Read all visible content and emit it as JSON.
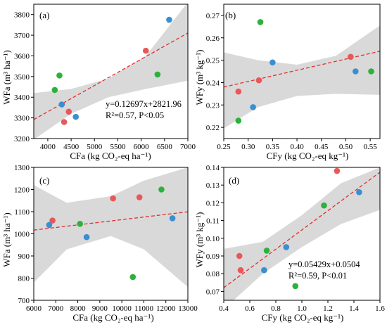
{
  "figure": {
    "panels": [
      {
        "id": "a",
        "panel_label": "(a)",
        "xlabel": "CFa (kg CO₂-eq ha⁻¹)",
        "ylabel": "WFa (m³ ha⁻¹)",
        "equation": "y=0.12697x+2821.96",
        "stats": "R²=0.57, P<0.05"
      },
      {
        "id": "b",
        "panel_label": "(b)",
        "xlabel": "CFy (kg CO₂-eq kg⁻¹)",
        "ylabel": "WFy (m³ kg⁻¹)",
        "equation": "",
        "stats": ""
      },
      {
        "id": "c",
        "panel_label": "(c)",
        "xlabel": "CFa (kg CO₂-eq ha⁻¹)",
        "ylabel": "WFa (m³ ha⁻¹)",
        "equation": "",
        "stats": ""
      },
      {
        "id": "d",
        "panel_label": "(d)",
        "xlabel": "CFy (kg CO₂-eq kg⁻¹)",
        "ylabel": "WFy (m³ kg⁻¹)",
        "equation": "y=0.05429x+0.0504",
        "stats": "R²=0.59, P<0.01"
      }
    ]
  },
  "colors": {
    "red": "#e8575a",
    "blue": "#3a8fd0",
    "green": "#2bb23b",
    "fit": "#e03030",
    "band": "#d9d9d9"
  },
  "chart_data": [
    {
      "type": "scatter",
      "panel": "a",
      "xlim": [
        3700,
        7000
      ],
      "ylim": [
        3200,
        3850
      ],
      "xticks": [
        4000,
        4500,
        5000,
        5500,
        6000,
        6500,
        7000
      ],
      "yticks": [
        3200,
        3300,
        3400,
        3500,
        3600,
        3700,
        3800
      ],
      "fit": {
        "slope": 0.12697,
        "intercept": 2821.96
      },
      "band": {
        "x": [
          3700,
          4500,
          5300,
          6100,
          7000
        ],
        "lower": [
          3195,
          3320,
          3400,
          3440,
          3480
        ],
        "upper": [
          3420,
          3440,
          3490,
          3600,
          3860
        ]
      },
      "points": [
        {
          "x": 6600,
          "y": 3775,
          "color": "blue"
        },
        {
          "x": 6100,
          "y": 3625,
          "color": "red"
        },
        {
          "x": 6350,
          "y": 3510,
          "color": "green"
        },
        {
          "x": 4250,
          "y": 3505,
          "color": "green"
        },
        {
          "x": 4150,
          "y": 3435,
          "color": "green"
        },
        {
          "x": 4300,
          "y": 3365,
          "color": "blue"
        },
        {
          "x": 4450,
          "y": 3330,
          "color": "red"
        },
        {
          "x": 4600,
          "y": 3305,
          "color": "blue"
        },
        {
          "x": 4350,
          "y": 3280,
          "color": "red"
        }
      ]
    },
    {
      "type": "scatter",
      "panel": "b",
      "xlim": [
        0.25,
        0.57
      ],
      "ylim": [
        0.215,
        0.275
      ],
      "xticks": [
        0.25,
        0.3,
        0.35,
        0.4,
        0.45,
        0.5,
        0.55
      ],
      "yticks": [
        0.22,
        0.23,
        0.24,
        0.25,
        0.26,
        0.27
      ],
      "fit": {
        "slope": 0.05,
        "intercept": 0.2255
      },
      "band": {
        "x": [
          0.25,
          0.32,
          0.4,
          0.48,
          0.57
        ],
        "lower": [
          0.2195,
          0.229,
          0.234,
          0.235,
          0.2345
        ],
        "upper": [
          0.2535,
          0.25,
          0.248,
          0.252,
          0.2655
        ]
      },
      "points": [
        {
          "x": 0.325,
          "y": 0.267,
          "color": "green"
        },
        {
          "x": 0.51,
          "y": 0.2515,
          "color": "red"
        },
        {
          "x": 0.35,
          "y": 0.249,
          "color": "blue"
        },
        {
          "x": 0.52,
          "y": 0.245,
          "color": "blue"
        },
        {
          "x": 0.552,
          "y": 0.245,
          "color": "green"
        },
        {
          "x": 0.322,
          "y": 0.241,
          "color": "red"
        },
        {
          "x": 0.28,
          "y": 0.236,
          "color": "red"
        },
        {
          "x": 0.31,
          "y": 0.229,
          "color": "blue"
        },
        {
          "x": 0.28,
          "y": 0.223,
          "color": "green"
        }
      ]
    },
    {
      "type": "scatter",
      "panel": "c",
      "xlim": [
        6000,
        13000
      ],
      "ylim": [
        700,
        1300
      ],
      "xticks": [
        6000,
        7000,
        8000,
        9000,
        10000,
        11000,
        12000,
        13000
      ],
      "yticks": [
        700,
        800,
        900,
        1000,
        1100,
        1200,
        1300
      ],
      "fit": {
        "slope": 0.0118,
        "intercept": 946
      },
      "band": {
        "x": [
          6000,
          7500,
          9500,
          11000,
          13000
        ],
        "lower": [
          780,
          930,
          990,
          930,
          760
        ],
        "upper": [
          1220,
          1140,
          1170,
          1240,
          1300
        ]
      },
      "points": [
        {
          "x": 11800,
          "y": 1200,
          "color": "green"
        },
        {
          "x": 10800,
          "y": 1165,
          "color": "red"
        },
        {
          "x": 9600,
          "y": 1160,
          "color": "red"
        },
        {
          "x": 12300,
          "y": 1070,
          "color": "blue"
        },
        {
          "x": 6850,
          "y": 1060,
          "color": "red"
        },
        {
          "x": 8100,
          "y": 1045,
          "color": "green"
        },
        {
          "x": 6700,
          "y": 1040,
          "color": "blue"
        },
        {
          "x": 8400,
          "y": 985,
          "color": "blue"
        },
        {
          "x": 10500,
          "y": 805,
          "color": "green"
        }
      ]
    },
    {
      "type": "scatter",
      "panel": "d",
      "xlim": [
        0.4,
        1.6
      ],
      "ylim": [
        0.065,
        0.14
      ],
      "xticks": [
        0.4,
        0.6,
        0.8,
        1.0,
        1.2,
        1.4,
        1.6
      ],
      "yticks": [
        0.07,
        0.08,
        0.09,
        0.1,
        0.11,
        0.12,
        0.13,
        0.14
      ],
      "fit": {
        "slope": 0.05429,
        "intercept": 0.0504
      },
      "band": {
        "x": [
          0.4,
          0.7,
          1.0,
          1.3,
          1.6
        ],
        "lower": [
          0.06,
          0.08,
          0.095,
          0.108,
          0.116
        ],
        "upper": [
          0.094,
          0.098,
          0.113,
          0.131,
          0.14
        ]
      },
      "points": [
        {
          "x": 1.27,
          "y": 0.138,
          "color": "red"
        },
        {
          "x": 1.44,
          "y": 0.126,
          "color": "blue"
        },
        {
          "x": 1.17,
          "y": 0.1185,
          "color": "green"
        },
        {
          "x": 0.88,
          "y": 0.095,
          "color": "blue"
        },
        {
          "x": 0.73,
          "y": 0.093,
          "color": "green"
        },
        {
          "x": 0.52,
          "y": 0.09,
          "color": "red"
        },
        {
          "x": 0.53,
          "y": 0.082,
          "color": "red"
        },
        {
          "x": 0.71,
          "y": 0.082,
          "color": "blue"
        },
        {
          "x": 0.95,
          "y": 0.073,
          "color": "green"
        }
      ]
    }
  ]
}
